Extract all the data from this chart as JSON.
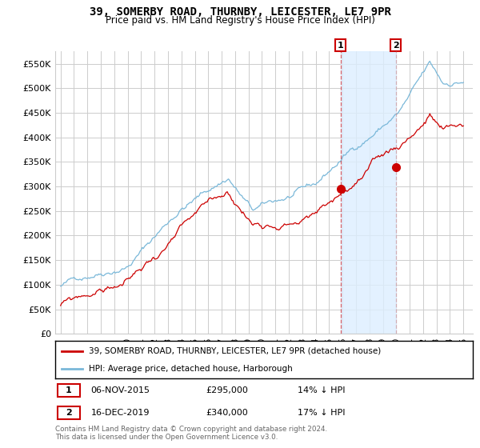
{
  "title": "39, SOMERBY ROAD, THURNBY, LEICESTER, LE7 9PR",
  "subtitle": "Price paid vs. HM Land Registry's House Price Index (HPI)",
  "hpi_label": "HPI: Average price, detached house, Harborough",
  "price_label": "39, SOMERBY ROAD, THURNBY, LEICESTER, LE7 9PR (detached house)",
  "transaction1_date": "06-NOV-2015",
  "transaction1_price": 295000,
  "transaction1_note": "14% ↓ HPI",
  "transaction2_date": "16-DEC-2019",
  "transaction2_price": 340000,
  "transaction2_note": "17% ↓ HPI",
  "footer": "Contains HM Land Registry data © Crown copyright and database right 2024.\nThis data is licensed under the Open Government Licence v3.0.",
  "hpi_color": "#7ab8d9",
  "price_color": "#cc0000",
  "shade_color": "#ddeeff",
  "ylim": [
    0,
    575000
  ],
  "yticks": [
    0,
    50000,
    100000,
    150000,
    200000,
    250000,
    300000,
    350000,
    400000,
    450000,
    500000,
    550000
  ],
  "bg_color": "#ffffff",
  "grid_color": "#cccccc",
  "transaction1_x": 2015.85,
  "transaction2_x": 2019.96
}
